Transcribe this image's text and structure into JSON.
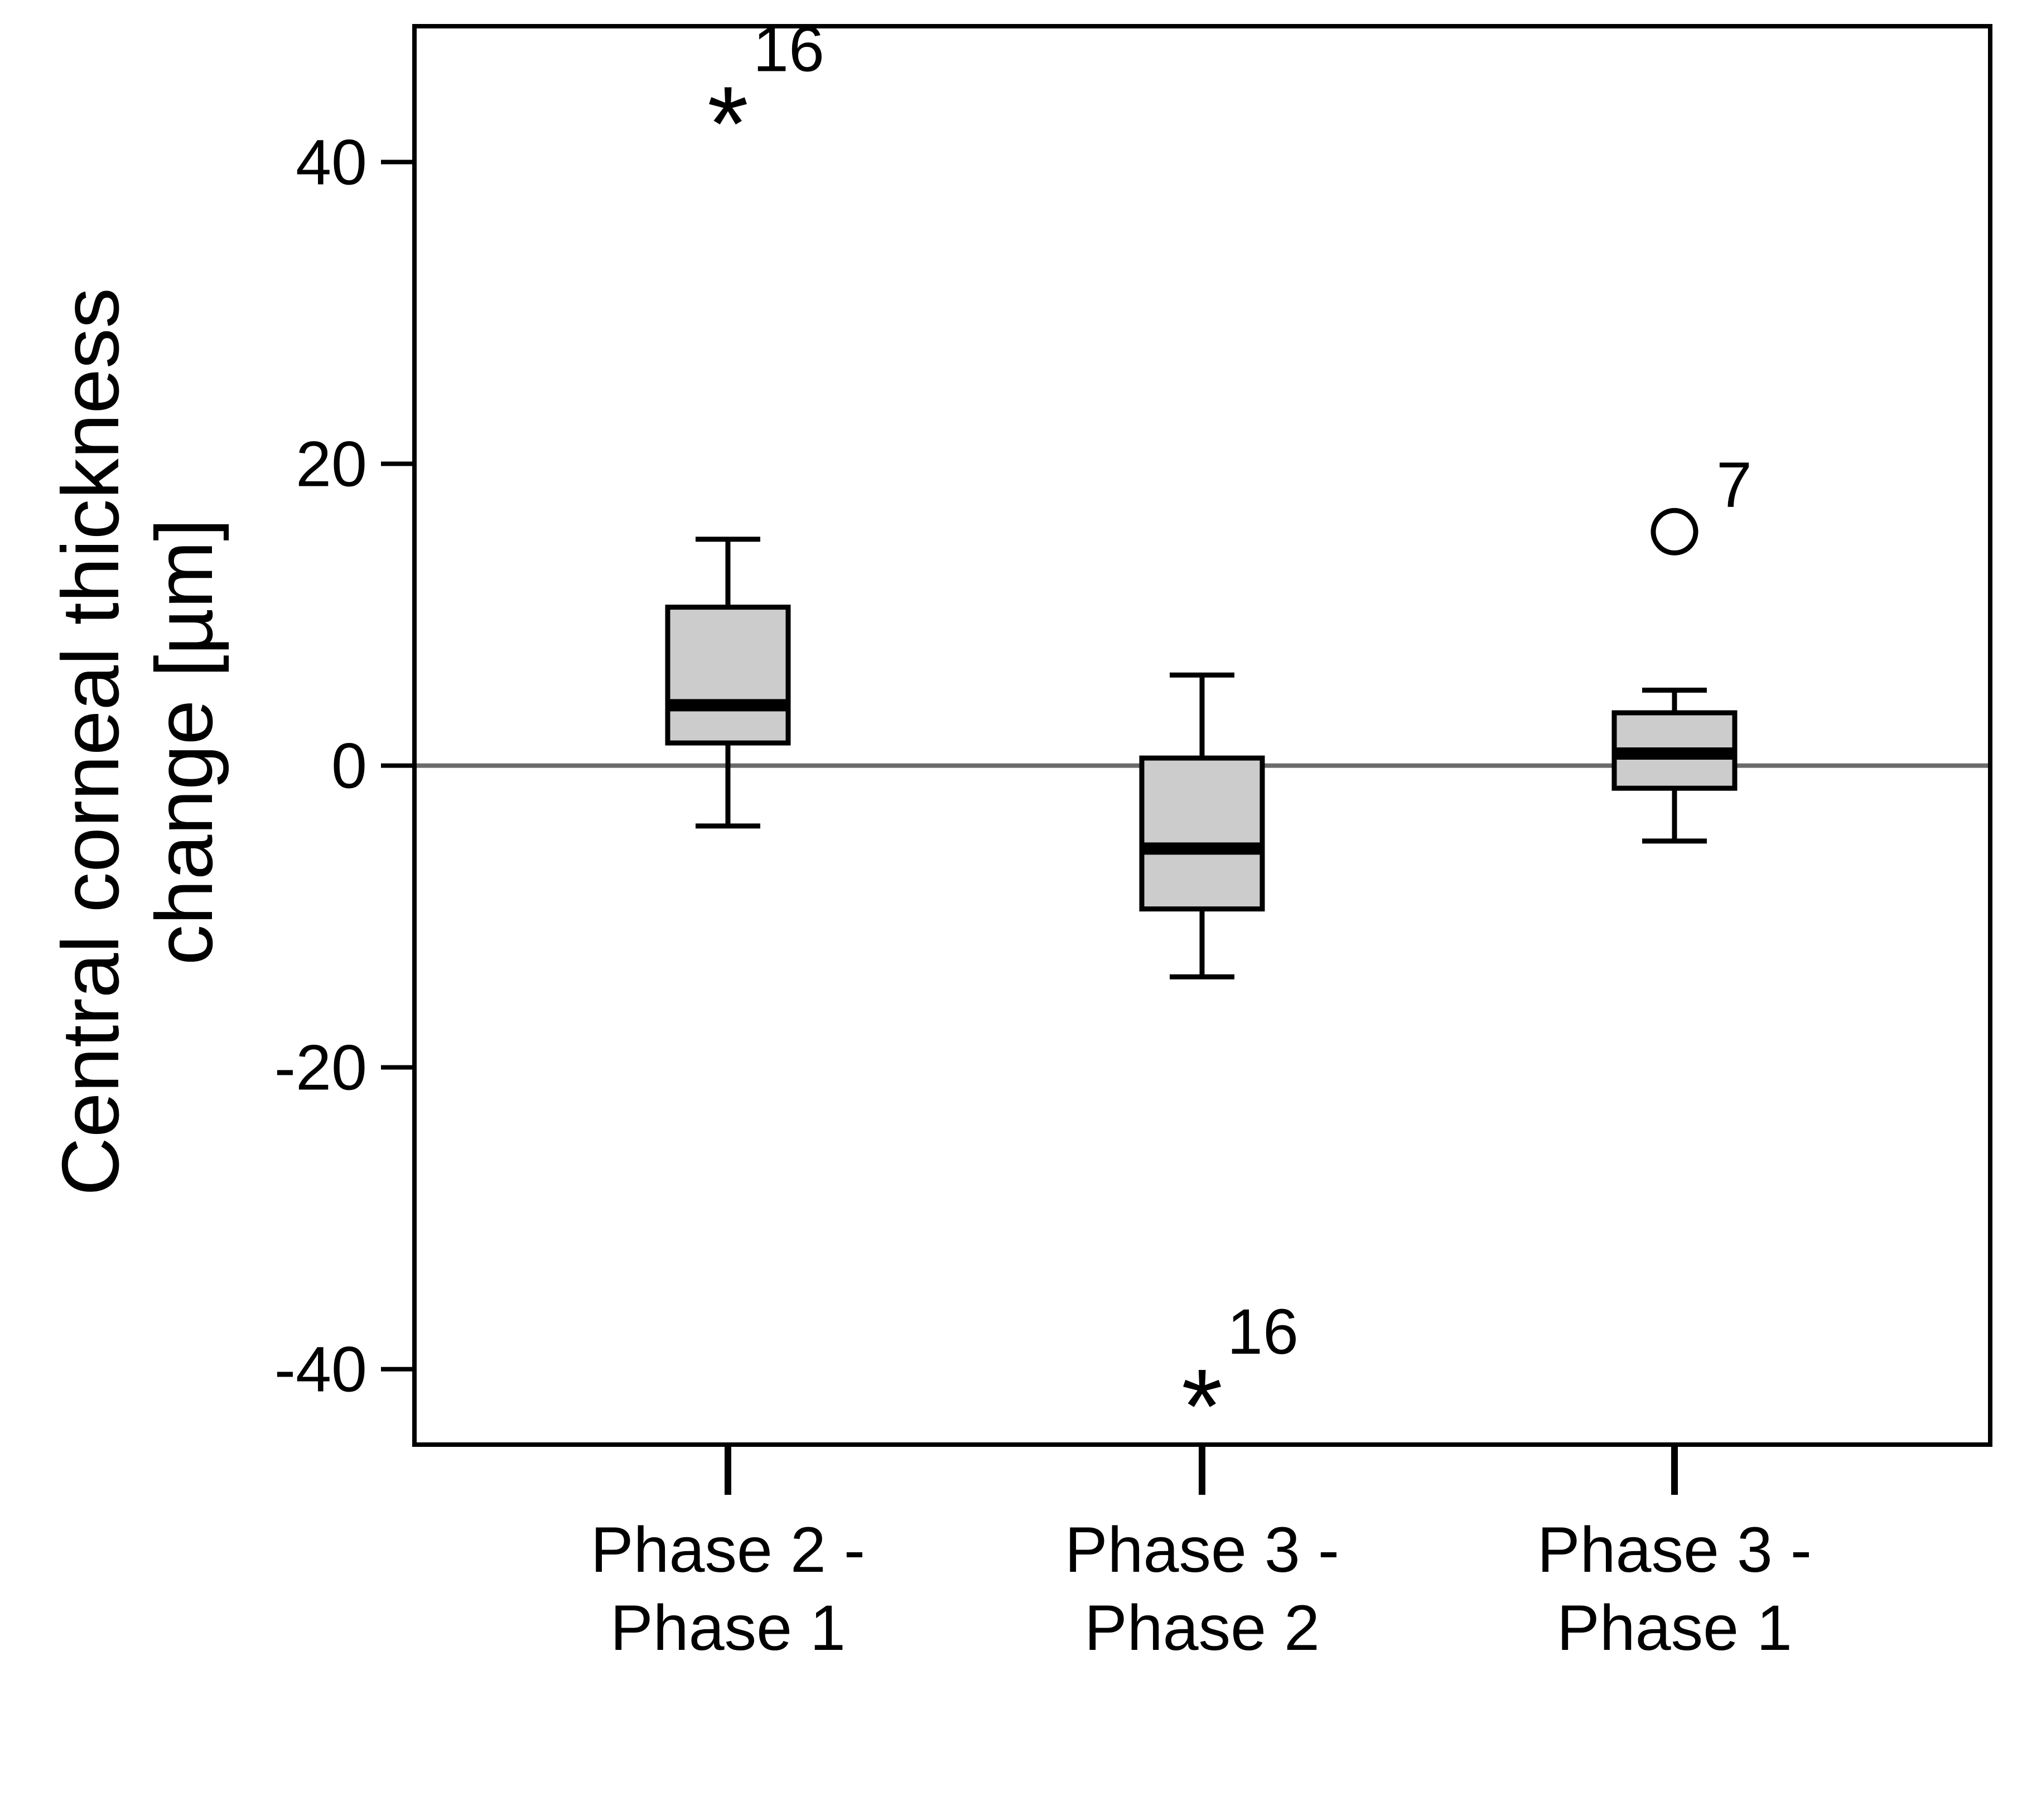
{
  "chart_data": {
    "type": "box",
    "title": "",
    "ylabel_lines": [
      "Central corneal thickness",
      "change [µm]"
    ],
    "xlabel": "",
    "ylim": [
      -45,
      49
    ],
    "yticks": [
      -40,
      -20,
      0,
      20,
      40
    ],
    "ytick_labels": [
      "-40",
      "-20",
      "0",
      "20",
      "40"
    ],
    "reference_line": {
      "y": 0,
      "color": "#6b6b6b"
    },
    "box_fill": "#cccccc",
    "box_stroke": "#000000",
    "categories": [
      {
        "lines": [
          "Phase 2 -",
          "Phase 1"
        ]
      },
      {
        "lines": [
          "Phase 3 -",
          "Phase 2"
        ]
      },
      {
        "lines": [
          "Phase 3 -",
          "Phase 1"
        ]
      }
    ],
    "boxes": [
      {
        "whisker_low": -4,
        "q1": 1.5,
        "median": 4,
        "q3": 10.5,
        "whisker_high": 15
      },
      {
        "whisker_low": -14,
        "q1": -9.5,
        "median": -5.5,
        "q3": 0.5,
        "whisker_high": 6
      },
      {
        "whisker_low": -5,
        "q1": -1.5,
        "median": 0.8,
        "q3": 3.5,
        "whisker_high": 5
      }
    ],
    "outliers": [
      {
        "category_index": 0,
        "y": 44,
        "marker": "star",
        "label": "16"
      },
      {
        "category_index": 1,
        "y": -41,
        "marker": "star",
        "label": "16"
      },
      {
        "category_index": 2,
        "y": 15.5,
        "marker": "circle",
        "label": "7"
      }
    ]
  }
}
